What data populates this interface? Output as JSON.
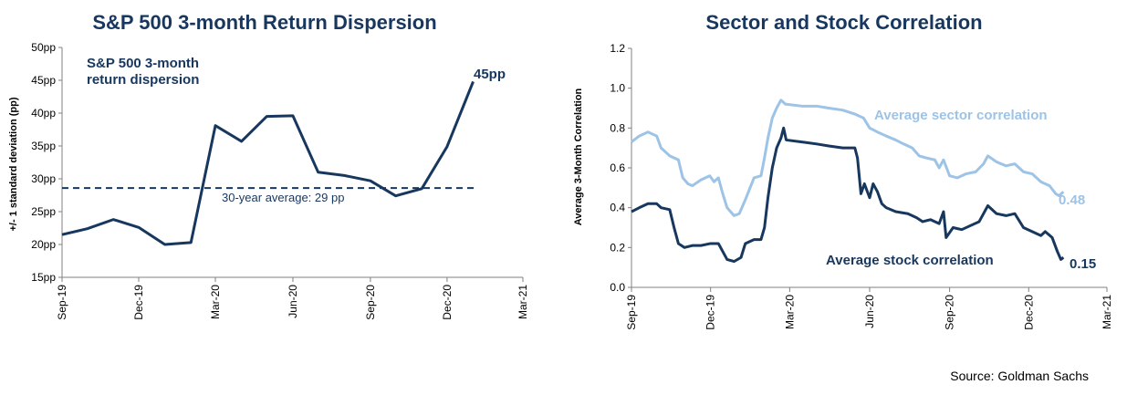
{
  "chart_data": [
    {
      "type": "line",
      "title": "S&P 500 3-month Return Dispersion",
      "ylabel": "+/- 1 standard deviation (pp)",
      "xlabel": "",
      "ylim": [
        15,
        50
      ],
      "yticks": [
        "15pp",
        "20pp",
        "25pp",
        "30pp",
        "35pp",
        "40pp",
        "45pp",
        "50pp"
      ],
      "xticks": [
        "Sep-19",
        "Dec-19",
        "Mar-20",
        "Jun-20",
        "Sep-20",
        "Dec-20",
        "Mar-21"
      ],
      "series": [
        {
          "name": "S&P 500 3-month return dispersion",
          "color": "#17375e",
          "x": [
            "2019-09-01",
            "2019-10-01",
            "2019-11-01",
            "2019-12-01",
            "2020-01-01",
            "2020-02-01",
            "2020-03-01",
            "2020-04-01",
            "2020-05-01",
            "2020-06-01",
            "2020-07-01",
            "2020-08-01",
            "2020-09-01",
            "2020-10-01",
            "2020-11-01",
            "2020-12-01",
            "2021-01-01"
          ],
          "values": [
            21.5,
            22.4,
            23.8,
            22.6,
            20.0,
            20.3,
            38.1,
            35.7,
            39.5,
            39.6,
            31.0,
            30.5,
            29.7,
            27.4,
            28.5,
            34.9,
            44.8
          ]
        }
      ],
      "average_line": {
        "value": 28.6,
        "label": "30-year average: 29 pp"
      },
      "end_label": "45pp"
    },
    {
      "type": "line",
      "title": "Sector and Stock Correlation",
      "ylabel": "Average 3-Month Correlation",
      "xlabel": "",
      "ylim": [
        0.0,
        1.2
      ],
      "yticks": [
        "0.0",
        "0.2",
        "0.4",
        "0.6",
        "0.8",
        "1.0",
        "1.2"
      ],
      "xticks": [
        "Sep-19",
        "Dec-19",
        "Mar-20",
        "Jun-20",
        "Sep-20",
        "Dec-20",
        "Mar-21"
      ],
      "series": [
        {
          "name": "Average sector correlation",
          "color": "#9dc3e6",
          "end_label": "0.48",
          "points": [
            [
              "2019-09-01",
              0.73
            ],
            [
              "2019-09-10",
              0.76
            ],
            [
              "2019-09-20",
              0.78
            ],
            [
              "2019-09-30",
              0.76
            ],
            [
              "2019-10-05",
              0.7
            ],
            [
              "2019-10-15",
              0.66
            ],
            [
              "2019-10-25",
              0.64
            ],
            [
              "2019-10-30",
              0.55
            ],
            [
              "2019-11-05",
              0.52
            ],
            [
              "2019-11-10",
              0.51
            ],
            [
              "2019-11-20",
              0.54
            ],
            [
              "2019-11-30",
              0.56
            ],
            [
              "2019-12-05",
              0.53
            ],
            [
              "2019-12-10",
              0.55
            ],
            [
              "2019-12-15",
              0.47
            ],
            [
              "2019-12-20",
              0.4
            ],
            [
              "2019-12-28",
              0.36
            ],
            [
              "2020-01-03",
              0.37
            ],
            [
              "2020-01-10",
              0.44
            ],
            [
              "2020-01-20",
              0.55
            ],
            [
              "2020-01-28",
              0.56
            ],
            [
              "2020-02-01",
              0.65
            ],
            [
              "2020-02-05",
              0.75
            ],
            [
              "2020-02-10",
              0.85
            ],
            [
              "2020-02-15",
              0.9
            ],
            [
              "2020-02-20",
              0.94
            ],
            [
              "2020-02-25",
              0.92
            ],
            [
              "2020-03-15",
              0.91
            ],
            [
              "2020-04-01",
              0.91
            ],
            [
              "2020-04-15",
              0.9
            ],
            [
              "2020-05-01",
              0.89
            ],
            [
              "2020-05-15",
              0.87
            ],
            [
              "2020-05-25",
              0.85
            ],
            [
              "2020-06-01",
              0.8
            ],
            [
              "2020-06-10",
              0.78
            ],
            [
              "2020-06-20",
              0.76
            ],
            [
              "2020-07-01",
              0.74
            ],
            [
              "2020-07-10",
              0.72
            ],
            [
              "2020-07-20",
              0.7
            ],
            [
              "2020-07-28",
              0.66
            ],
            [
              "2020-08-05",
              0.65
            ],
            [
              "2020-08-15",
              0.64
            ],
            [
              "2020-08-20",
              0.6
            ],
            [
              "2020-08-25",
              0.64
            ],
            [
              "2020-09-01",
              0.56
            ],
            [
              "2020-09-10",
              0.55
            ],
            [
              "2020-09-20",
              0.57
            ],
            [
              "2020-10-01",
              0.58
            ],
            [
              "2020-10-10",
              0.62
            ],
            [
              "2020-10-15",
              0.66
            ],
            [
              "2020-10-25",
              0.63
            ],
            [
              "2020-11-05",
              0.61
            ],
            [
              "2020-11-15",
              0.62
            ],
            [
              "2020-11-25",
              0.58
            ],
            [
              "2020-12-05",
              0.57
            ],
            [
              "2020-12-15",
              0.53
            ],
            [
              "2020-12-25",
              0.51
            ],
            [
              "2021-01-01",
              0.47
            ],
            [
              "2021-01-05",
              0.46
            ],
            [
              "2021-01-10",
              0.48
            ]
          ]
        },
        {
          "name": "Average stock correlation",
          "color": "#17375e",
          "end_label": "0.15",
          "points": [
            [
              "2019-09-01",
              0.38
            ],
            [
              "2019-09-10",
              0.4
            ],
            [
              "2019-09-20",
              0.42
            ],
            [
              "2019-09-30",
              0.42
            ],
            [
              "2019-10-05",
              0.4
            ],
            [
              "2019-10-15",
              0.39
            ],
            [
              "2019-10-20",
              0.3
            ],
            [
              "2019-10-25",
              0.22
            ],
            [
              "2019-11-01",
              0.2
            ],
            [
              "2019-11-10",
              0.21
            ],
            [
              "2019-11-20",
              0.21
            ],
            [
              "2019-12-01",
              0.22
            ],
            [
              "2019-12-10",
              0.22
            ],
            [
              "2019-12-15",
              0.18
            ],
            [
              "2019-12-20",
              0.14
            ],
            [
              "2019-12-28",
              0.13
            ],
            [
              "2020-01-05",
              0.15
            ],
            [
              "2020-01-10",
              0.22
            ],
            [
              "2020-01-20",
              0.24
            ],
            [
              "2020-01-28",
              0.24
            ],
            [
              "2020-02-01",
              0.3
            ],
            [
              "2020-02-05",
              0.45
            ],
            [
              "2020-02-10",
              0.6
            ],
            [
              "2020-02-15",
              0.7
            ],
            [
              "2020-02-20",
              0.75
            ],
            [
              "2020-02-23",
              0.8
            ],
            [
              "2020-02-26",
              0.74
            ],
            [
              "2020-03-15",
              0.73
            ],
            [
              "2020-04-01",
              0.72
            ],
            [
              "2020-04-15",
              0.71
            ],
            [
              "2020-05-01",
              0.7
            ],
            [
              "2020-05-15",
              0.7
            ],
            [
              "2020-05-18",
              0.65
            ],
            [
              "2020-05-22",
              0.47
            ],
            [
              "2020-05-26",
              0.52
            ],
            [
              "2020-06-01",
              0.45
            ],
            [
              "2020-06-05",
              0.52
            ],
            [
              "2020-06-10",
              0.48
            ],
            [
              "2020-06-15",
              0.42
            ],
            [
              "2020-06-20",
              0.4
            ],
            [
              "2020-07-01",
              0.38
            ],
            [
              "2020-07-15",
              0.37
            ],
            [
              "2020-07-25",
              0.35
            ],
            [
              "2020-08-01",
              0.33
            ],
            [
              "2020-08-10",
              0.34
            ],
            [
              "2020-08-20",
              0.32
            ],
            [
              "2020-08-25",
              0.38
            ],
            [
              "2020-08-28",
              0.25
            ],
            [
              "2020-09-05",
              0.3
            ],
            [
              "2020-09-15",
              0.29
            ],
            [
              "2020-09-25",
              0.31
            ],
            [
              "2020-10-05",
              0.33
            ],
            [
              "2020-10-15",
              0.41
            ],
            [
              "2020-10-25",
              0.37
            ],
            [
              "2020-11-05",
              0.36
            ],
            [
              "2020-11-15",
              0.37
            ],
            [
              "2020-11-25",
              0.3
            ],
            [
              "2020-12-05",
              0.28
            ],
            [
              "2020-12-15",
              0.26
            ],
            [
              "2020-12-20",
              0.28
            ],
            [
              "2020-12-28",
              0.25
            ],
            [
              "2021-01-03",
              0.18
            ],
            [
              "2021-01-07",
              0.14
            ],
            [
              "2021-01-10",
              0.15
            ]
          ]
        }
      ]
    }
  ],
  "source": "Source: Goldman Sachs"
}
